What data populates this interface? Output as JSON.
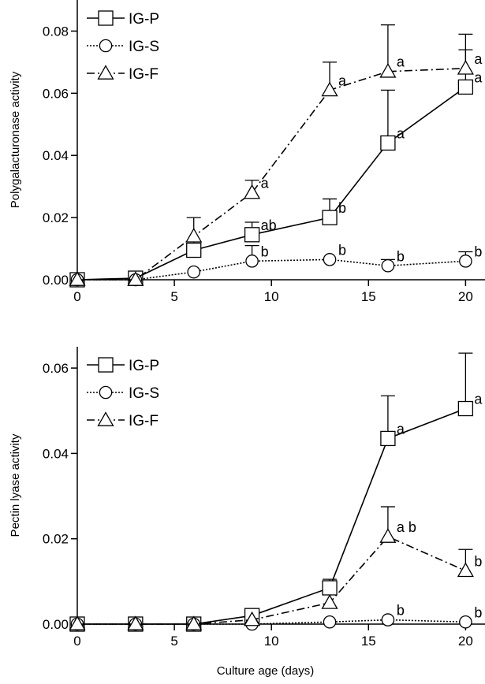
{
  "chart_data": [
    {
      "type": "line",
      "title": "",
      "xlabel": "",
      "ylabel": "Polygalacturonase activity",
      "xlim": [
        0,
        21
      ],
      "ylim": [
        0,
        0.09
      ],
      "xticks": [
        0,
        5,
        10,
        15,
        20
      ],
      "xtick_labels": [
        "0",
        "5",
        "10",
        "15",
        "20"
      ],
      "yticks": [
        0,
        0.02,
        0.04,
        0.06,
        0.08
      ],
      "ytick_labels": [
        "0.00",
        "0.02",
        "0.04",
        "0.06",
        "0.08"
      ],
      "grid": false,
      "legend_position": "top-left",
      "x": [
        0,
        3,
        6,
        9,
        13,
        16,
        20
      ],
      "series": [
        {
          "name": "IG-P",
          "marker": "square",
          "line": "solid",
          "values": [
            0,
            0.0005,
            0.0095,
            0.0145,
            0.02,
            0.044,
            0.062
          ],
          "error": [
            0,
            0,
            0.003,
            0.004,
            0.006,
            0.017,
            0.012
          ],
          "sig_labels": [
            "",
            "",
            "",
            "ab",
            "b",
            "a",
            "a"
          ]
        },
        {
          "name": "IG-S",
          "marker": "circle",
          "line": "dotted",
          "values": [
            0,
            0,
            0.0025,
            0.006,
            0.0065,
            0.0045,
            0.006
          ],
          "error": [
            0,
            0,
            0,
            0.005,
            0,
            0.002,
            0.003
          ],
          "sig_labels": [
            "",
            "",
            "",
            "b",
            "b",
            "b",
            "b"
          ]
        },
        {
          "name": "IG-F",
          "marker": "triangle",
          "line": "dashdot",
          "values": [
            0,
            0,
            0.014,
            0.028,
            0.061,
            0.067,
            0.068
          ],
          "error": [
            0,
            0,
            0.006,
            0.004,
            0.009,
            0.015,
            0.011
          ],
          "sig_labels": [
            "",
            "",
            "",
            "a",
            "a",
            "a",
            "a"
          ]
        }
      ]
    },
    {
      "type": "line",
      "title": "",
      "xlabel": "Culture age (days)",
      "ylabel": "Pectin lyase activity",
      "xlim": [
        0,
        21
      ],
      "ylim": [
        0,
        0.065
      ],
      "xticks": [
        0,
        5,
        10,
        15,
        20
      ],
      "xtick_labels": [
        "0",
        "5",
        "10",
        "15",
        "20"
      ],
      "yticks": [
        0,
        0.02,
        0.04,
        0.06
      ],
      "ytick_labels": [
        "0.00",
        "0.02",
        "0.04",
        "0.06"
      ],
      "grid": false,
      "legend_position": "top-left",
      "x": [
        0,
        3,
        6,
        9,
        13,
        16,
        20
      ],
      "series": [
        {
          "name": "IG-P",
          "marker": "square",
          "line": "solid",
          "values": [
            0,
            0,
            0,
            0.002,
            0.0085,
            0.0435,
            0.0505
          ],
          "error": [
            0,
            0,
            0,
            0,
            0.002,
            0.01,
            0.013
          ],
          "sig_labels": [
            "",
            "",
            "",
            "",
            "",
            "a",
            "a"
          ]
        },
        {
          "name": "IG-S",
          "marker": "circle",
          "line": "dotted",
          "values": [
            0,
            0,
            0,
            0,
            0.0005,
            0.001,
            0.0005
          ],
          "error": [
            0,
            0,
            0,
            0,
            0,
            0,
            0
          ],
          "sig_labels": [
            "",
            "",
            "",
            "",
            "",
            "b",
            "b"
          ]
        },
        {
          "name": "IG-F",
          "marker": "triangle",
          "line": "dashdot",
          "values": [
            0,
            0,
            0,
            0.001,
            0.005,
            0.0205,
            0.0125
          ],
          "error": [
            0,
            0,
            0,
            0,
            0,
            0.007,
            0.005
          ],
          "sig_labels": [
            "",
            "",
            "",
            "",
            "",
            "a b",
            "b"
          ]
        }
      ]
    }
  ]
}
